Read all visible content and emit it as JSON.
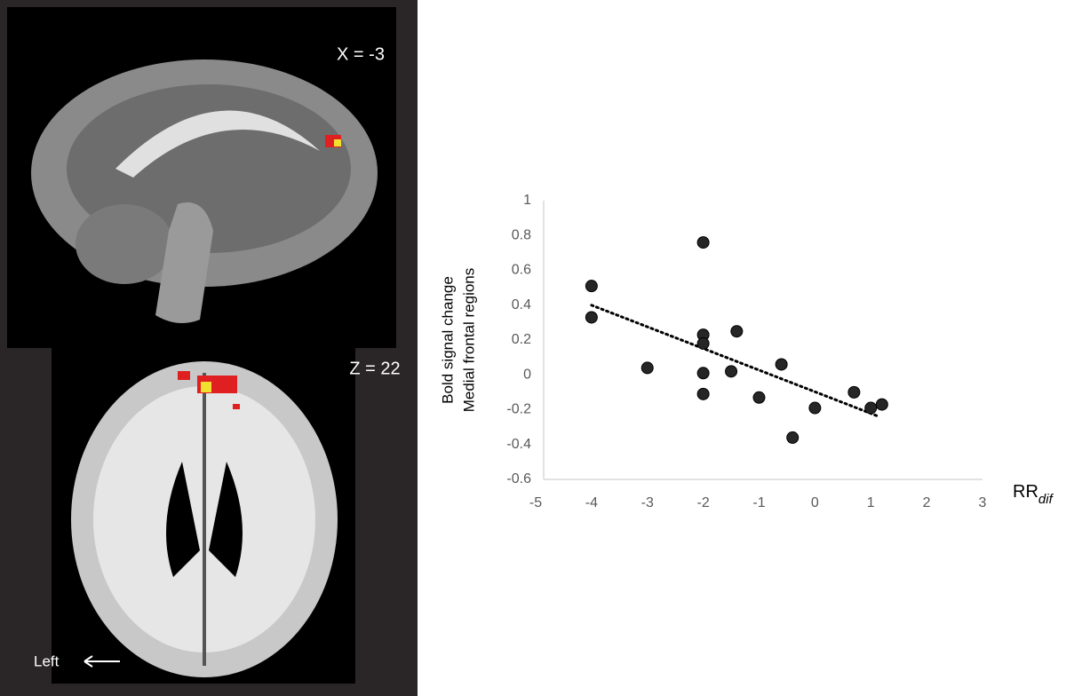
{
  "chart_data": {
    "type": "scatter",
    "y_label_lines": [
      "Bold signal change",
      "Medial frontal regions"
    ],
    "x_label": "RR",
    "x_label_subscript": "dif",
    "annotations": [
      "X = -3",
      "Z = 22",
      "Left"
    ],
    "x": [
      -4,
      -4,
      -3,
      -2,
      -2,
      -2,
      -2,
      -2,
      -1.5,
      -1.4,
      -1,
      -0.6,
      -0.4,
      0,
      0.7,
      1,
      1.2
    ],
    "values": [
      0.51,
      0.33,
      0.04,
      0.76,
      0.23,
      0.18,
      0.01,
      -0.11,
      0.02,
      0.25,
      -0.13,
      0.06,
      -0.36,
      -0.19,
      -0.1,
      -0.19,
      -0.17
    ],
    "color": "#262626",
    "trendline": {
      "x": [
        -4,
        1.15
      ],
      "y": [
        0.4,
        -0.24
      ]
    },
    "xlim": [
      -5,
      3
    ],
    "xticks": [
      -5,
      -4,
      -3,
      -2,
      -1,
      0,
      1,
      2,
      3
    ],
    "ylim": [
      -0.6,
      1
    ],
    "yticks": [
      -0.6,
      -0.4,
      -0.2,
      0,
      0.2,
      0.4,
      0.6,
      0.8,
      1
    ],
    "grid": false
  }
}
